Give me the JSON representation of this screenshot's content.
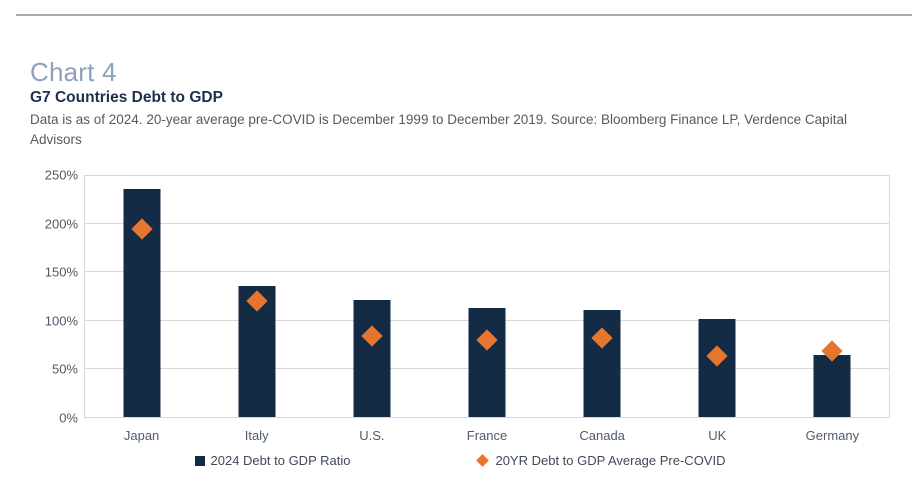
{
  "header": {
    "chart_label": "Chart 4",
    "title": "G7 Countries Debt to GDP",
    "subtitle": "Data is as of 2024. 20-year average pre-COVID is December 1999 to December 2019. Source: Bloomberg Finance LP, Verdence Capital Advisors"
  },
  "chart_data": {
    "type": "bar",
    "title": "G7 Countries Debt to GDP",
    "categories": [
      "Japan",
      "Italy",
      "U.S.",
      "France",
      "Canada",
      "UK",
      "Germany"
    ],
    "series": [
      {
        "name": "2024 Debt to GDP Ratio",
        "type": "bar",
        "marker": "square",
        "color": "#132b45",
        "values": [
          237,
          136,
          121,
          113,
          111,
          102,
          64
        ]
      },
      {
        "name": "20YR Debt to GDP Average Pre-COVID",
        "type": "scatter",
        "marker": "diamond",
        "color": "#e6752e",
        "values": [
          195,
          120,
          84,
          80,
          82,
          63,
          68
        ]
      }
    ],
    "ylim": [
      0,
      250
    ],
    "ytick_step": 50,
    "ytick_labels": [
      "0%",
      "50%",
      "100%",
      "150%",
      "200%",
      "250%"
    ],
    "grid": true,
    "legend_position": "bottom",
    "colors": {
      "bar": "#132b45",
      "diamond": "#e6752e",
      "gridline": "#d9d9d9",
      "accent_title": "#8ea1bc"
    }
  }
}
